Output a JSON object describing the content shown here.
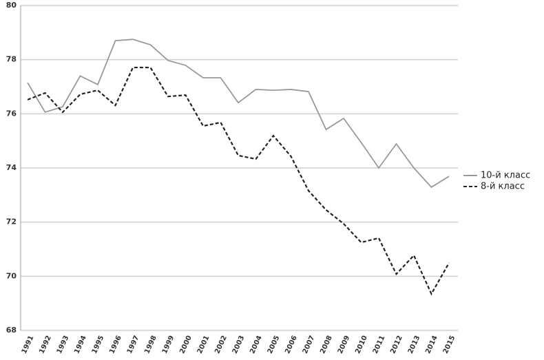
{
  "chart_data": {
    "type": "line",
    "categories": [
      "1991",
      "1992",
      "1993",
      "1994",
      "1995",
      "1996",
      "1997",
      "1998",
      "1999",
      "2000",
      "2001",
      "2002",
      "2003",
      "2004",
      "2005",
      "2006",
      "2007",
      "2008",
      "2009",
      "2010",
      "2011",
      "2012",
      "2013",
      "2014",
      "2015"
    ],
    "series": [
      {
        "name": "10-й класс",
        "color": "#999999",
        "line_style": "solid",
        "values": [
          77.15,
          76.06,
          76.26,
          77.4,
          77.08,
          78.7,
          78.75,
          78.55,
          77.97,
          77.79,
          77.33,
          77.33,
          76.41,
          76.9,
          76.87,
          76.9,
          76.82,
          75.42,
          75.83,
          74.94,
          74.0,
          74.89,
          74.0,
          73.29,
          73.69
        ]
      },
      {
        "name": "8-й класс",
        "color": "#222222",
        "line_style": "dashed",
        "values": [
          76.52,
          76.77,
          76.06,
          76.72,
          76.87,
          76.31,
          77.71,
          77.71,
          76.64,
          76.69,
          75.55,
          75.68,
          74.46,
          74.33,
          75.19,
          74.43,
          73.16,
          72.45,
          71.94,
          71.25,
          71.41,
          70.08,
          70.77,
          69.35,
          70.49
        ]
      }
    ],
    "ylim": [
      68,
      80
    ],
    "yticks": [
      68,
      70,
      72,
      74,
      76,
      78,
      80
    ],
    "grid": true,
    "legend": "right"
  }
}
